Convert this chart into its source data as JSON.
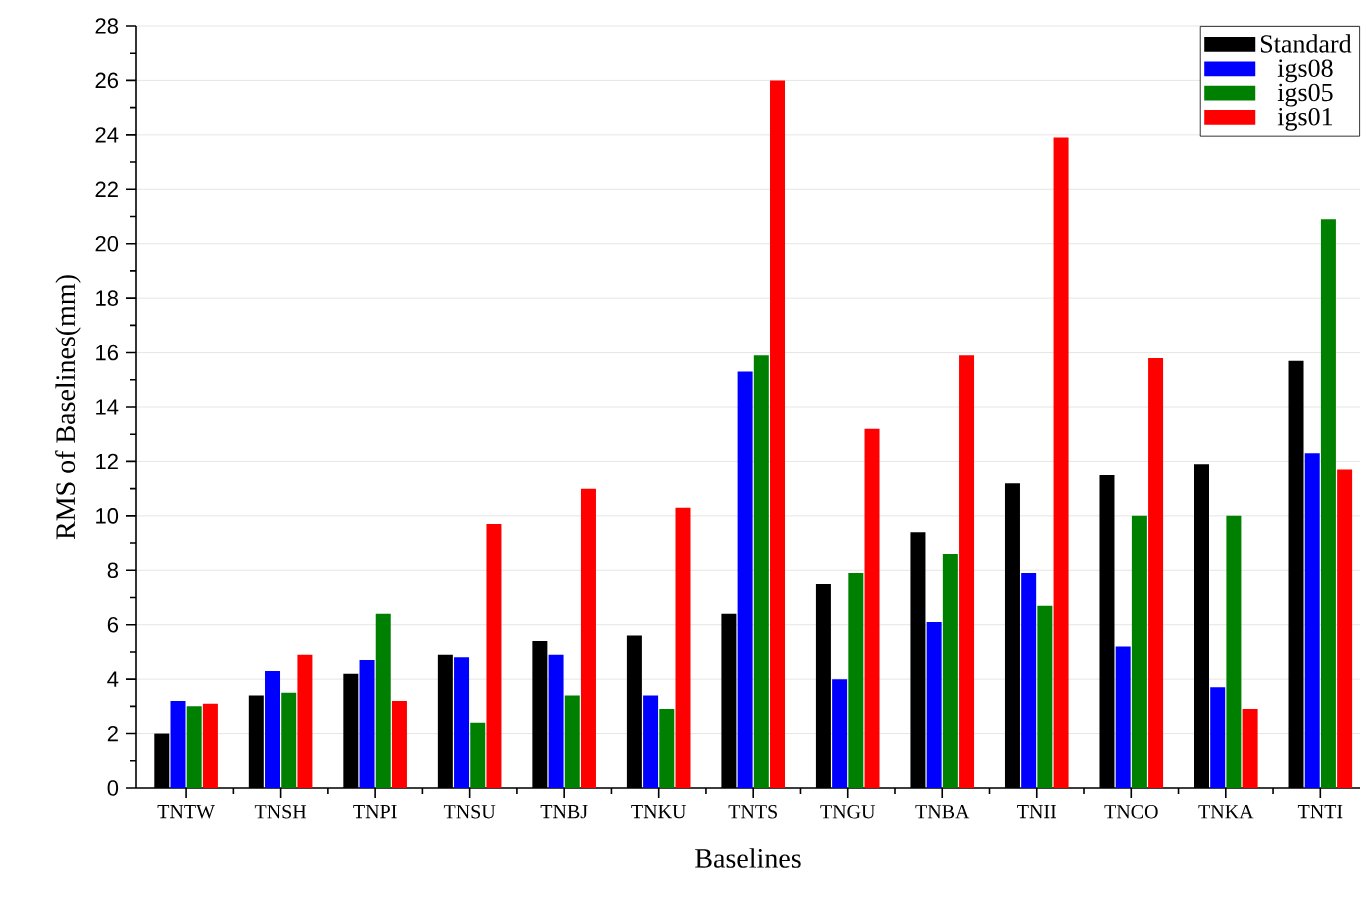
{
  "chart_data": {
    "type": "bar",
    "xlabel": "Baselines",
    "ylabel": "RMS of Baselines(mm)",
    "categories": [
      "TNTW",
      "TNSH",
      "TNPI",
      "TNSU",
      "TNBJ",
      "TNKU",
      "TNTS",
      "TNGU",
      "TNBA",
      "TNII",
      "TNCO",
      "TNKA",
      "TNTI"
    ],
    "series": [
      {
        "name": "Standard",
        "color": "#000000",
        "values": [
          2.0,
          3.4,
          4.2,
          4.9,
          5.4,
          5.6,
          6.4,
          7.5,
          9.4,
          11.2,
          11.5,
          11.9,
          15.7
        ]
      },
      {
        "name": "igs08",
        "color": "#0000ff",
        "values": [
          3.2,
          4.3,
          4.7,
          4.8,
          4.9,
          3.4,
          15.3,
          4.0,
          6.1,
          7.9,
          5.2,
          3.7,
          12.3
        ]
      },
      {
        "name": "igs05",
        "color": "#008000",
        "values": [
          3.0,
          3.5,
          6.4,
          2.4,
          3.4,
          2.9,
          15.9,
          7.9,
          8.6,
          6.7,
          10.0,
          10.0,
          20.9
        ]
      },
      {
        "name": "igs01",
        "color": "#ff0000",
        "values": [
          3.1,
          4.9,
          3.2,
          9.7,
          11.0,
          10.3,
          26.0,
          13.2,
          15.9,
          23.9,
          15.8,
          2.9,
          11.7
        ]
      }
    ],
    "ylim": [
      0,
      28
    ],
    "yticks": [
      0,
      2,
      4,
      6,
      8,
      10,
      12,
      14,
      16,
      18,
      20,
      22,
      24,
      26,
      28
    ],
    "grid": "y",
    "legend": "top right"
  }
}
